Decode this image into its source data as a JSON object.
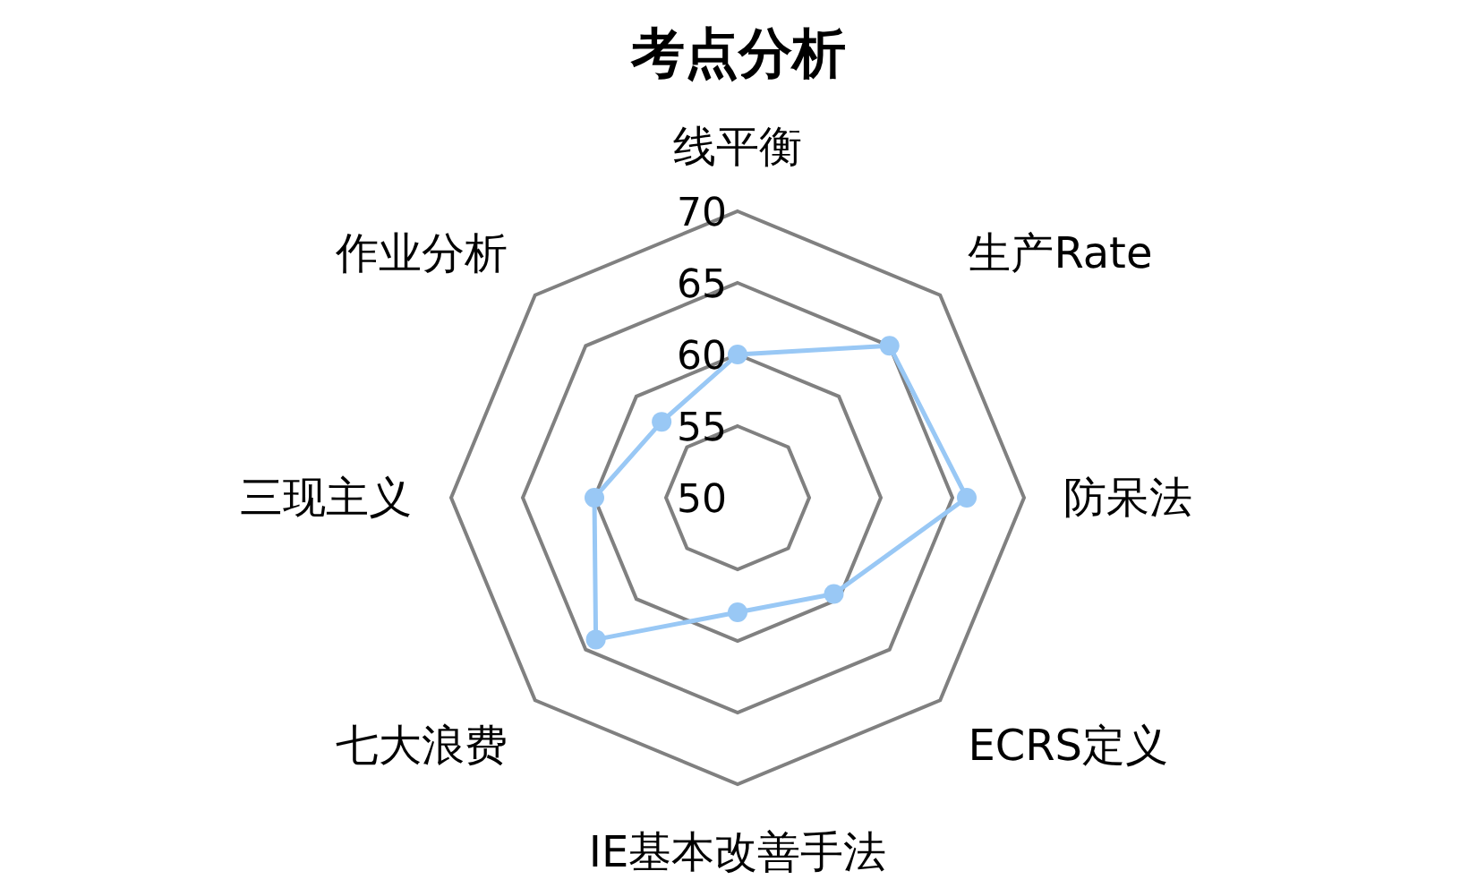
{
  "chart_data": {
    "type": "radar",
    "title": "考点分析",
    "categories": [
      "线平衡",
      "生产Rate",
      "防呆法",
      "ECRS定义",
      "IE基本改善手法",
      "七大浪费",
      "三现主义",
      "作业分析"
    ],
    "series": [
      {
        "color": "#99c8f5",
        "values": [
          60,
          65,
          66,
          59.5,
          58,
          64,
          60,
          57.5
        ]
      }
    ],
    "ylim": [
      50,
      70
    ],
    "yticks": [
      50,
      55,
      60,
      65,
      70
    ],
    "grid": true,
    "marker": "circle"
  }
}
